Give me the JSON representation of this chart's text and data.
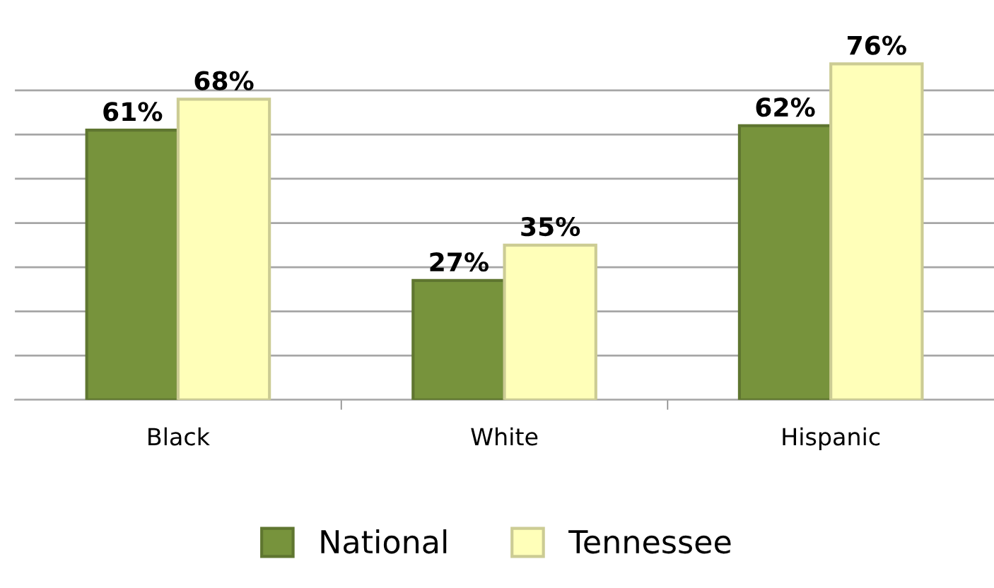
{
  "chart_data": {
    "type": "bar",
    "categories": [
      "Black",
      "White",
      "Hispanic"
    ],
    "series": [
      {
        "name": "National",
        "color": "#77933c",
        "values": [
          61,
          27,
          62
        ],
        "value_labels": [
          "61%",
          "27%",
          "62%"
        ]
      },
      {
        "name": "Tennessee",
        "color": "#ffffb9",
        "values": [
          68,
          35,
          76
        ],
        "value_labels": [
          "68%",
          "35%",
          "76%"
        ]
      }
    ],
    "yticks": [
      {
        "value": 0,
        "label": null
      },
      {
        "value": 10,
        "label": null
      },
      {
        "value": 20,
        "label": null
      },
      {
        "value": 30,
        "label": null
      },
      {
        "value": 40,
        "label": null
      },
      {
        "value": 50,
        "label": null
      },
      {
        "value": 60,
        "label": null
      },
      {
        "value": 70,
        "label": null
      }
    ],
    "tick_labels": "x",
    "grid": "y",
    "legend": "bottom"
  }
}
